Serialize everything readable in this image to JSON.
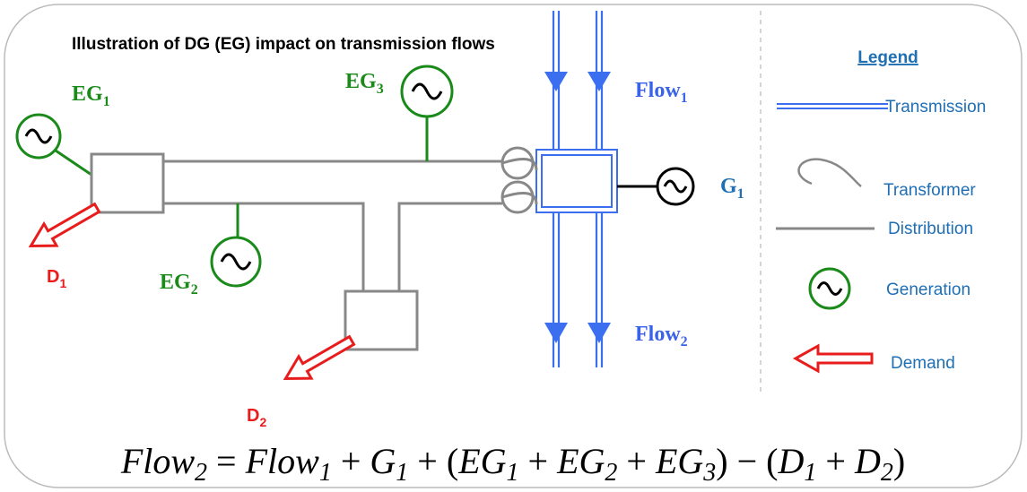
{
  "title": "Illustration of DG (EG)  impact on transmission flows",
  "labels": {
    "eg1": {
      "base": "EG",
      "sub": "1"
    },
    "eg2": {
      "base": "EG",
      "sub": "2"
    },
    "eg3": {
      "base": "EG",
      "sub": "3"
    },
    "flow1": {
      "base": "Flow",
      "sub": "1"
    },
    "flow2": {
      "base": "Flow",
      "sub": "2"
    },
    "g1": {
      "base": "G",
      "sub": "1"
    },
    "d1": {
      "base": "D",
      "sub": "1"
    },
    "d2": {
      "base": "D",
      "sub": "2"
    }
  },
  "legend": {
    "title": "Legend",
    "items": [
      "Transmission",
      "Transformer",
      "Distribution",
      "Generation",
      "Demand"
    ]
  },
  "equation": [
    {
      "base": "Flow",
      "sub": "2"
    },
    " = ",
    {
      "base": "Flow",
      "sub": "1"
    },
    " + ",
    {
      "base": "G",
      "sub": "1"
    },
    " + (",
    {
      "base": "EG",
      "sub": "1"
    },
    " + ",
    {
      "base": "EG",
      "sub": "2"
    },
    " + ",
    {
      "base": "EG",
      "sub": "3"
    },
    ") − (",
    {
      "base": "D",
      "sub": "1"
    },
    " + ",
    {
      "base": "D",
      "sub": "2"
    },
    ")"
  ]
}
